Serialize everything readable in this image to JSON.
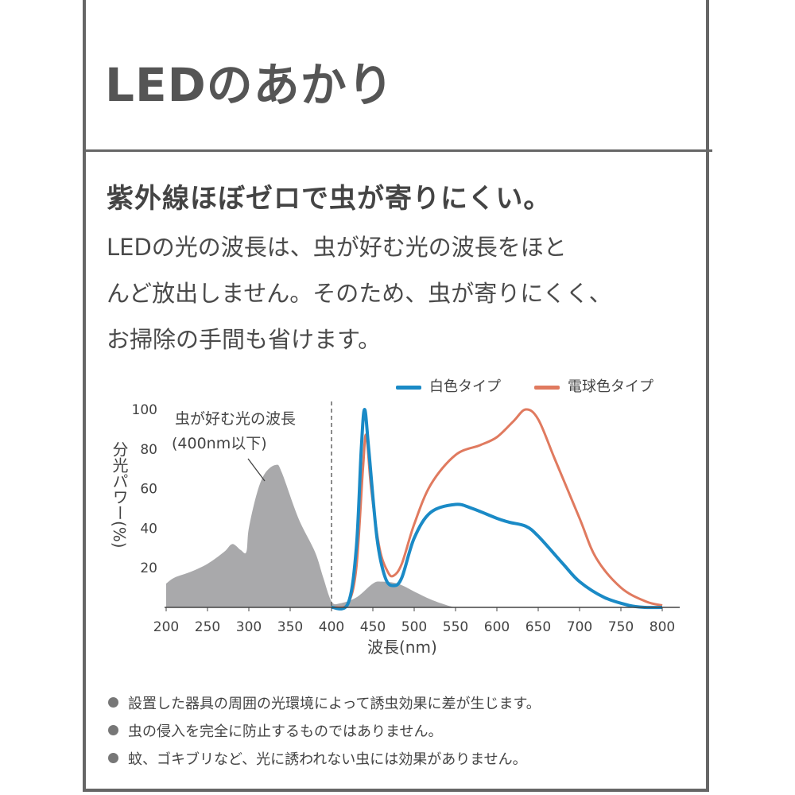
{
  "title": "LEDのあかり",
  "headline": "紫外線ほぼゼロで虫が寄りにくい。",
  "body_lines": [
    "LEDの光の波長は、虫が好む光の波長をほと",
    "んど放出しません。そのため、虫が寄りにくく、",
    "お掃除の手間も省けます。"
  ],
  "chart_data": {
    "type": "line",
    "xlabel": "波長(nm)",
    "ylabel": "分光パワー(%)",
    "xlim": [
      200,
      800
    ],
    "ylim": [
      0,
      100
    ],
    "xticks": [
      200,
      250,
      300,
      350,
      400,
      450,
      500,
      550,
      600,
      650,
      700,
      750,
      800
    ],
    "yticks": [
      20,
      40,
      60,
      80,
      100
    ],
    "legend_position": "top-right",
    "annotation": {
      "lines": [
        "虫が好む光の波長",
        "(400nm以下)"
      ],
      "divider_x": 400
    },
    "series": [
      {
        "name": "白色タイプ",
        "color": "#1a8ac6",
        "x": [
          400,
          420,
          430,
          436,
          440,
          445,
          455,
          465,
          475,
          485,
          500,
          520,
          550,
          570,
          600,
          615,
          635,
          650,
          680,
          700,
          730,
          760,
          780,
          800
        ],
        "y": [
          0,
          2,
          30,
          80,
          100,
          80,
          35,
          15,
          11,
          15,
          35,
          48,
          52,
          50,
          45,
          43,
          41,
          36,
          22,
          13,
          5,
          1,
          0,
          0
        ]
      },
      {
        "name": "電球色タイプ",
        "color": "#e07a5f",
        "x": [
          405,
          420,
          430,
          438,
          442,
          448,
          458,
          468,
          475,
          485,
          500,
          520,
          550,
          580,
          600,
          620,
          635,
          650,
          670,
          700,
          720,
          750,
          780,
          800
        ],
        "y": [
          0,
          2,
          20,
          70,
          87,
          60,
          30,
          18,
          16,
          22,
          42,
          62,
          77,
          82,
          86,
          94,
          100,
          95,
          75,
          45,
          25,
          10,
          3,
          1
        ]
      },
      {
        "type": "area",
        "color": "#a9a9ab",
        "x": [
          200,
          210,
          230,
          250,
          270,
          280,
          290,
          297,
          300,
          310,
          320,
          333,
          340,
          360,
          380,
          390,
          400,
          410,
          430,
          450,
          460,
          480,
          500,
          520,
          540,
          550
        ],
        "y": [
          12,
          15,
          18,
          22,
          28,
          32,
          29,
          28,
          40,
          58,
          68,
          72,
          68,
          45,
          28,
          15,
          3,
          2,
          5,
          12,
          13,
          12,
          8,
          4,
          1,
          0
        ]
      }
    ]
  },
  "notes": [
    "設置した器具の周囲の光環境によって誘虫効果に差が生じます。",
    "虫の侵入を完全に防止するものではありません。",
    "蚊、ゴキブリなど、光に誘われない虫には効果がありません。"
  ]
}
